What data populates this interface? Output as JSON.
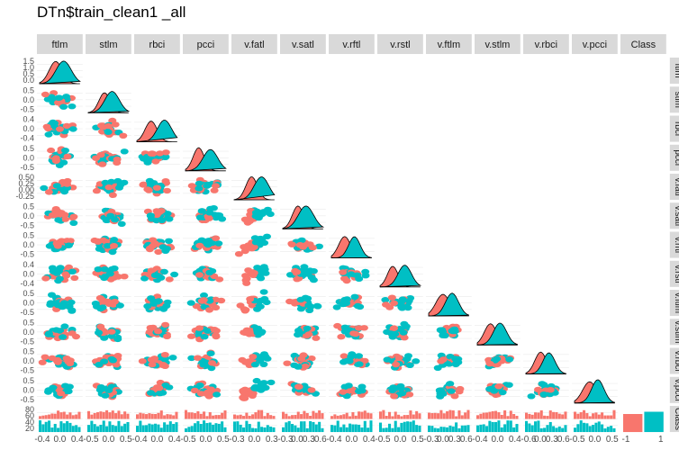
{
  "title": "DTn$train_clean1  _all",
  "colors": {
    "class_neg": "#F8766D",
    "class_pos": "#00BFC4",
    "strip_bg": "#D9D9D9",
    "panel_grid": "#EBEBEB"
  },
  "chart_data": {
    "type": "pairs-matrix",
    "title": "DTn$train_clean1  _all",
    "variables": [
      "ftlm",
      "stlm",
      "rbci",
      "pcci",
      "v.fatl",
      "v.satl",
      "v.rftl",
      "v.rstl",
      "v.ftlm",
      "v.stlm",
      "v.rbci",
      "v.pcci",
      "Class"
    ],
    "row_labels": [
      "ftlm",
      "stlm",
      "rbci",
      "pcci",
      "v.fatl",
      "v.satl",
      "v.rftl",
      "v.rstl",
      "v.ftlm",
      "v.stlm",
      "v.rbci",
      "v.pcci",
      "Class"
    ],
    "series": [
      {
        "name": "-1",
        "color": "#F8766D"
      },
      {
        "name": "1",
        "color": "#00BFC4"
      }
    ],
    "diagonal": "density",
    "lower": "scatter",
    "upper": "blank",
    "y_ticks_by_row": [
      [
        "1.5",
        "1.0",
        "0.5",
        "0.0"
      ],
      [
        "0.5",
        "0.0",
        "-0.5"
      ],
      [
        "0.4",
        "0.0",
        "-0.4"
      ],
      [
        "0.5",
        "0.0",
        "-0.5"
      ],
      [
        "0.50",
        "0.25",
        "0.00",
        "-0.25"
      ],
      [
        "0.5",
        "0.0",
        "-0.5"
      ],
      [
        "0.5",
        "0.0",
        "-0.5"
      ],
      [
        "0.4",
        "0.0",
        "-0.4"
      ],
      [
        "0.5",
        "0.0",
        "-0.5"
      ],
      [
        "0.5",
        "0.0",
        "-0.5"
      ],
      [
        "0.5",
        "0.0",
        "-0.5"
      ],
      [
        "0.5",
        "0.0",
        "-0.5"
      ],
      [
        "80",
        "60",
        "40",
        "20"
      ]
    ],
    "x_ticks_by_col": [
      [
        "-0.4",
        "0.0",
        "0.4"
      ],
      [
        "-0.5",
        "0.0",
        "0.5"
      ],
      [
        "-0.4",
        "0.0",
        "0.4"
      ],
      [
        "-0.5",
        "0.0",
        "0.5"
      ],
      [
        "-0.3",
        "0.0",
        "0.3"
      ],
      [
        "-0.3",
        "0.0",
        "0.3",
        "0.6"
      ],
      [
        "-0.4",
        "0.0",
        "0.4"
      ],
      [
        "-0.5",
        "0.0",
        "0.5"
      ],
      [
        "-0.3",
        "0.0",
        "0.3",
        "0.6"
      ],
      [
        "-0.4",
        "0.0",
        "0.4"
      ],
      [
        "-0.6",
        "0.0",
        "0.3",
        "0.6"
      ],
      [
        "-0.5",
        "0.0",
        "0.5"
      ],
      [
        "-1",
        "1"
      ]
    ],
    "class_bar_counts": [
      {
        "class": "-1",
        "value": 80
      },
      {
        "class": "1",
        "value": 90
      }
    ]
  }
}
